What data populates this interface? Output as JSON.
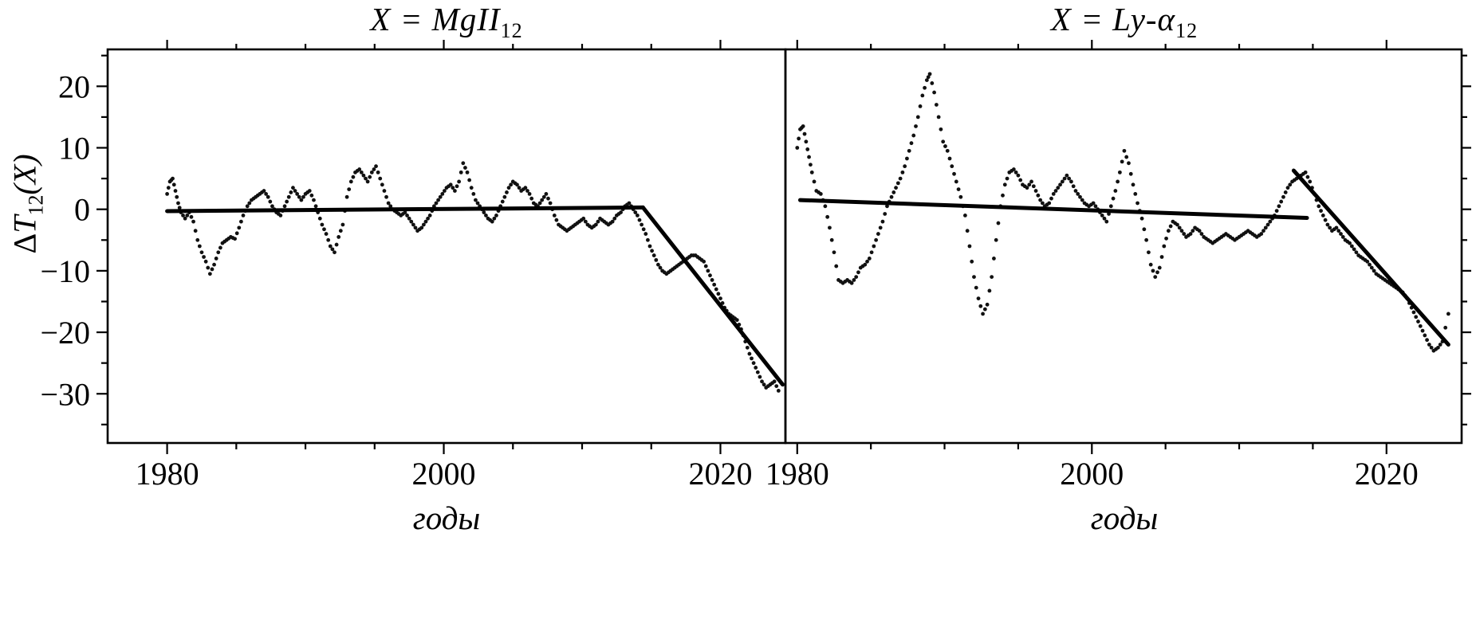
{
  "figure": {
    "background": "#ffffff",
    "axis_color": "#000000",
    "dot_color": "#111111",
    "trend_color": "#000000"
  },
  "axes": {
    "ylabel": {
      "delta": "Δ",
      "main": "T",
      "sub": "12",
      "suffix": "(X)"
    },
    "xlabel": "годы"
  },
  "chart_data": [
    {
      "type": "scatter",
      "title_main": "X = MgII",
      "title_sub": "12",
      "xlabel": "годы",
      "ylabel": "ΔT12(X)",
      "xlim": [
        1975.7,
        2024.7
      ],
      "ylim": [
        -38,
        26
      ],
      "x_major_ticks": [
        1980,
        2000,
        2020
      ],
      "x_minor_ticks": [
        1985,
        1990,
        1995,
        2005,
        2010,
        2015
      ],
      "y_major_ticks": [
        20,
        10,
        0,
        -10,
        -20,
        -30
      ],
      "y_minor_ticks": [
        25,
        15,
        5,
        -5,
        -15,
        -25,
        -35
      ],
      "grid": false,
      "legend": "none",
      "points": [
        [
          1980.0,
          2.5
        ],
        [
          1980.2,
          4.5
        ],
        [
          1980.4,
          5.0
        ],
        [
          1980.6,
          3.0
        ],
        [
          1980.8,
          1.0
        ],
        [
          1981.0,
          -0.5
        ],
        [
          1981.3,
          -1.5
        ],
        [
          1981.6,
          -0.5
        ],
        [
          1981.9,
          -2.0
        ],
        [
          1982.2,
          -5.0
        ],
        [
          1982.5,
          -7.0
        ],
        [
          1982.8,
          -8.5
        ],
        [
          1983.1,
          -10.5
        ],
        [
          1983.4,
          -9.0
        ],
        [
          1983.7,
          -7.0
        ],
        [
          1984.0,
          -5.5
        ],
        [
          1984.3,
          -5.0
        ],
        [
          1984.6,
          -4.5
        ],
        [
          1984.9,
          -4.8
        ],
        [
          1985.2,
          -3.0
        ],
        [
          1985.5,
          -1.0
        ],
        [
          1985.8,
          0.5
        ],
        [
          1986.1,
          1.5
        ],
        [
          1986.4,
          2.0
        ],
        [
          1986.7,
          2.5
        ],
        [
          1987.0,
          3.0
        ],
        [
          1987.3,
          2.0
        ],
        [
          1987.6,
          0.5
        ],
        [
          1987.9,
          -0.5
        ],
        [
          1988.2,
          -1.0
        ],
        [
          1988.5,
          0.5
        ],
        [
          1988.8,
          2.0
        ],
        [
          1989.1,
          3.5
        ],
        [
          1989.4,
          2.5
        ],
        [
          1989.7,
          1.5
        ],
        [
          1990.0,
          2.5
        ],
        [
          1990.3,
          3.0
        ],
        [
          1990.6,
          1.5
        ],
        [
          1990.9,
          -0.5
        ],
        [
          1991.2,
          -2.5
        ],
        [
          1991.5,
          -4.0
        ],
        [
          1991.8,
          -6.0
        ],
        [
          1992.1,
          -7.0
        ],
        [
          1992.4,
          -4.5
        ],
        [
          1992.7,
          -2.5
        ],
        [
          1993.0,
          2.0
        ],
        [
          1993.3,
          4.5
        ],
        [
          1993.6,
          6.0
        ],
        [
          1993.9,
          6.5
        ],
        [
          1994.2,
          5.5
        ],
        [
          1994.5,
          4.5
        ],
        [
          1994.8,
          6.0
        ],
        [
          1995.1,
          7.0
        ],
        [
          1995.4,
          5.0
        ],
        [
          1995.7,
          3.0
        ],
        [
          1996.0,
          1.0
        ],
        [
          1996.3,
          0.0
        ],
        [
          1996.6,
          -0.5
        ],
        [
          1996.9,
          -1.0
        ],
        [
          1997.2,
          -0.5
        ],
        [
          1997.5,
          -1.5
        ],
        [
          1997.8,
          -2.5
        ],
        [
          1998.1,
          -3.5
        ],
        [
          1998.4,
          -3.0
        ],
        [
          1998.7,
          -2.0
        ],
        [
          1999.0,
          -1.0
        ],
        [
          1999.3,
          0.5
        ],
        [
          1999.6,
          1.5
        ],
        [
          1999.9,
          2.5
        ],
        [
          2000.2,
          3.5
        ],
        [
          2000.5,
          4.0
        ],
        [
          2000.8,
          3.0
        ],
        [
          2001.1,
          4.5
        ],
        [
          2001.4,
          7.5
        ],
        [
          2001.7,
          6.0
        ],
        [
          2002.0,
          3.5
        ],
        [
          2002.3,
          1.5
        ],
        [
          2002.6,
          0.5
        ],
        [
          2002.9,
          -0.5
        ],
        [
          2003.2,
          -1.5
        ],
        [
          2003.5,
          -2.0
        ],
        [
          2003.8,
          -1.0
        ],
        [
          2004.1,
          0.5
        ],
        [
          2004.4,
          2.0
        ],
        [
          2004.7,
          3.5
        ],
        [
          2005.0,
          4.5
        ],
        [
          2005.3,
          4.0
        ],
        [
          2005.6,
          3.0
        ],
        [
          2005.9,
          3.5
        ],
        [
          2006.2,
          2.5
        ],
        [
          2006.5,
          1.0
        ],
        [
          2006.8,
          0.5
        ],
        [
          2007.1,
          1.5
        ],
        [
          2007.4,
          2.5
        ],
        [
          2007.7,
          1.0
        ],
        [
          2008.0,
          -1.0
        ],
        [
          2008.3,
          -2.5
        ],
        [
          2008.6,
          -3.0
        ],
        [
          2008.9,
          -3.5
        ],
        [
          2009.2,
          -3.0
        ],
        [
          2009.5,
          -2.5
        ],
        [
          2009.8,
          -2.0
        ],
        [
          2010.1,
          -1.5
        ],
        [
          2010.4,
          -2.5
        ],
        [
          2010.7,
          -3.0
        ],
        [
          2011.0,
          -2.5
        ],
        [
          2011.3,
          -1.5
        ],
        [
          2011.6,
          -2.0
        ],
        [
          2011.9,
          -2.5
        ],
        [
          2012.2,
          -2.0
        ],
        [
          2012.5,
          -1.0
        ],
        [
          2012.8,
          -0.5
        ],
        [
          2013.1,
          0.5
        ],
        [
          2013.4,
          1.0
        ],
        [
          2013.7,
          0.0
        ],
        [
          2014.0,
          -1.0
        ],
        [
          2014.3,
          -2.5
        ],
        [
          2014.6,
          -4.0
        ],
        [
          2014.9,
          -6.0
        ],
        [
          2015.2,
          -7.5
        ],
        [
          2015.5,
          -9.0
        ],
        [
          2015.8,
          -10.0
        ],
        [
          2016.1,
          -10.5
        ],
        [
          2016.4,
          -10.0
        ],
        [
          2016.7,
          -9.5
        ],
        [
          2017.0,
          -9.0
        ],
        [
          2017.3,
          -8.5
        ],
        [
          2017.6,
          -8.0
        ],
        [
          2017.9,
          -7.5
        ],
        [
          2018.2,
          -7.5
        ],
        [
          2018.5,
          -8.0
        ],
        [
          2018.8,
          -8.5
        ],
        [
          2019.1,
          -10.0
        ],
        [
          2019.4,
          -11.5
        ],
        [
          2019.7,
          -13.0
        ],
        [
          2020.0,
          -14.5
        ],
        [
          2020.3,
          -16.0
        ],
        [
          2020.6,
          -17.0
        ],
        [
          2020.9,
          -17.5
        ],
        [
          2021.2,
          -18.0
        ],
        [
          2021.5,
          -19.5
        ],
        [
          2021.8,
          -21.5
        ],
        [
          2022.1,
          -23.5
        ],
        [
          2022.4,
          -25.0
        ],
        [
          2022.7,
          -26.5
        ],
        [
          2023.0,
          -28.0
        ],
        [
          2023.3,
          -29.0
        ],
        [
          2023.6,
          -28.5
        ],
        [
          2023.9,
          -28.0
        ],
        [
          2024.2,
          -29.5
        ]
      ],
      "trend_segments": [
        {
          "x1": 1980.0,
          "y1": -0.3,
          "x2": 2014.4,
          "y2": 0.3
        },
        {
          "x1": 2014.4,
          "y1": 0.3,
          "x2": 2024.5,
          "y2": -28.5
        }
      ]
    },
    {
      "type": "scatter",
      "title_main": "X = Ly-α",
      "title_sub": "12",
      "xlabel": "годы",
      "ylabel": "ΔT12(X)",
      "xlim": [
        1979.2,
        2025.1
      ],
      "ylim": [
        -38,
        26
      ],
      "x_major_ticks": [
        1980,
        2000,
        2020
      ],
      "x_minor_ticks": [
        1985,
        1990,
        1995,
        2005,
        2010,
        2015
      ],
      "y_major_ticks": [
        20,
        10,
        0,
        -10,
        -20,
        -30
      ],
      "y_minor_ticks": [
        25,
        15,
        5,
        -5,
        -15,
        -25,
        -35
      ],
      "grid": false,
      "legend": "none",
      "points": [
        [
          1980.0,
          10.0
        ],
        [
          1980.2,
          13.0
        ],
        [
          1980.4,
          13.5
        ],
        [
          1980.6,
          11.0
        ],
        [
          1980.8,
          8.5
        ],
        [
          1981.0,
          6.0
        ],
        [
          1981.3,
          3.0
        ],
        [
          1981.6,
          2.5
        ],
        [
          1981.9,
          0.5
        ],
        [
          1982.2,
          -3.0
        ],
        [
          1982.5,
          -7.0
        ],
        [
          1982.8,
          -11.5
        ],
        [
          1983.1,
          -12.0
        ],
        [
          1983.4,
          -11.5
        ],
        [
          1983.7,
          -12.0
        ],
        [
          1984.0,
          -11.0
        ],
        [
          1984.3,
          -9.5
        ],
        [
          1984.6,
          -9.0
        ],
        [
          1984.9,
          -8.0
        ],
        [
          1985.2,
          -6.0
        ],
        [
          1985.5,
          -4.0
        ],
        [
          1985.8,
          -2.0
        ],
        [
          1986.1,
          0.5
        ],
        [
          1986.4,
          2.0
        ],
        [
          1986.7,
          3.5
        ],
        [
          1987.0,
          5.0
        ],
        [
          1987.3,
          7.0
        ],
        [
          1987.6,
          9.5
        ],
        [
          1987.9,
          12.0
        ],
        [
          1988.2,
          15.0
        ],
        [
          1988.5,
          18.5
        ],
        [
          1988.8,
          21.0
        ],
        [
          1989.0,
          22.0
        ],
        [
          1989.3,
          19.0
        ],
        [
          1989.6,
          15.0
        ],
        [
          1989.9,
          11.0
        ],
        [
          1990.2,
          9.5
        ],
        [
          1990.5,
          7.0
        ],
        [
          1990.8,
          4.5
        ],
        [
          1991.1,
          2.0
        ],
        [
          1991.4,
          -1.0
        ],
        [
          1991.7,
          -6.0
        ],
        [
          1992.0,
          -11.0
        ],
        [
          1992.3,
          -14.5
        ],
        [
          1992.6,
          -17.0
        ],
        [
          1992.9,
          -15.5
        ],
        [
          1993.2,
          -11.0
        ],
        [
          1993.5,
          -5.0
        ],
        [
          1993.8,
          0.5
        ],
        [
          1994.1,
          4.0
        ],
        [
          1994.4,
          6.0
        ],
        [
          1994.7,
          6.5
        ],
        [
          1995.0,
          5.5
        ],
        [
          1995.3,
          4.0
        ],
        [
          1995.6,
          3.5
        ],
        [
          1995.9,
          4.5
        ],
        [
          1996.2,
          3.0
        ],
        [
          1996.5,
          1.5
        ],
        [
          1996.8,
          0.5
        ],
        [
          1997.1,
          1.0
        ],
        [
          1997.4,
          2.5
        ],
        [
          1997.7,
          3.5
        ],
        [
          1998.0,
          4.5
        ],
        [
          1998.3,
          5.5
        ],
        [
          1998.6,
          4.5
        ],
        [
          1998.9,
          3.0
        ],
        [
          1999.2,
          2.0
        ],
        [
          1999.5,
          1.0
        ],
        [
          1999.8,
          0.5
        ],
        [
          2000.1,
          1.0
        ],
        [
          2000.4,
          0.0
        ],
        [
          2000.7,
          -1.0
        ],
        [
          2001.0,
          -2.0
        ],
        [
          2001.3,
          0.5
        ],
        [
          2001.6,
          3.0
        ],
        [
          2001.9,
          6.0
        ],
        [
          2002.2,
          9.5
        ],
        [
          2002.5,
          7.5
        ],
        [
          2002.8,
          4.0
        ],
        [
          2003.1,
          1.0
        ],
        [
          2003.4,
          -1.5
        ],
        [
          2003.7,
          -5.0
        ],
        [
          2004.0,
          -9.0
        ],
        [
          2004.3,
          -11.0
        ],
        [
          2004.6,
          -9.5
        ],
        [
          2004.9,
          -6.0
        ],
        [
          2005.2,
          -3.5
        ],
        [
          2005.5,
          -2.0
        ],
        [
          2005.8,
          -2.5
        ],
        [
          2006.1,
          -3.5
        ],
        [
          2006.4,
          -4.5
        ],
        [
          2006.7,
          -4.0
        ],
        [
          2007.0,
          -3.0
        ],
        [
          2007.3,
          -3.5
        ],
        [
          2007.6,
          -4.5
        ],
        [
          2007.9,
          -5.0
        ],
        [
          2008.2,
          -5.5
        ],
        [
          2008.5,
          -5.0
        ],
        [
          2008.8,
          -4.5
        ],
        [
          2009.1,
          -4.0
        ],
        [
          2009.4,
          -4.5
        ],
        [
          2009.7,
          -5.0
        ],
        [
          2010.0,
          -4.5
        ],
        [
          2010.3,
          -4.0
        ],
        [
          2010.6,
          -3.5
        ],
        [
          2010.9,
          -4.0
        ],
        [
          2011.2,
          -4.5
        ],
        [
          2011.5,
          -4.0
        ],
        [
          2011.8,
          -3.0
        ],
        [
          2012.1,
          -2.0
        ],
        [
          2012.4,
          -1.0
        ],
        [
          2012.7,
          0.5
        ],
        [
          2013.0,
          2.0
        ],
        [
          2013.3,
          3.5
        ],
        [
          2013.6,
          4.5
        ],
        [
          2013.9,
          5.0
        ],
        [
          2014.2,
          5.5
        ],
        [
          2014.5,
          6.0
        ],
        [
          2014.8,
          4.5
        ],
        [
          2015.1,
          2.5
        ],
        [
          2015.4,
          0.5
        ],
        [
          2015.7,
          -1.0
        ],
        [
          2016.0,
          -2.5
        ],
        [
          2016.3,
          -3.5
        ],
        [
          2016.6,
          -3.0
        ],
        [
          2016.9,
          -4.0
        ],
        [
          2017.2,
          -5.0
        ],
        [
          2017.5,
          -5.5
        ],
        [
          2017.8,
          -6.5
        ],
        [
          2018.1,
          -7.5
        ],
        [
          2018.4,
          -8.0
        ],
        [
          2018.7,
          -8.5
        ],
        [
          2019.0,
          -9.5
        ],
        [
          2019.3,
          -10.5
        ],
        [
          2019.6,
          -11.0
        ],
        [
          2019.9,
          -11.5
        ],
        [
          2020.2,
          -12.0
        ],
        [
          2020.5,
          -12.5
        ],
        [
          2020.8,
          -13.0
        ],
        [
          2021.1,
          -13.5
        ],
        [
          2021.4,
          -14.5
        ],
        [
          2021.7,
          -16.0
        ],
        [
          2022.0,
          -17.5
        ],
        [
          2022.3,
          -19.0
        ],
        [
          2022.6,
          -20.5
        ],
        [
          2022.9,
          -22.0
        ],
        [
          2023.2,
          -23.0
        ],
        [
          2023.5,
          -22.5
        ],
        [
          2023.8,
          -21.5
        ],
        [
          2024.2,
          -17.0
        ]
      ],
      "trend_segments": [
        {
          "x1": 1980.2,
          "y1": 1.5,
          "x2": 2014.6,
          "y2": -1.4
        },
        {
          "x1": 2013.7,
          "y1": 6.3,
          "x2": 2024.2,
          "y2": -22.0
        }
      ]
    }
  ]
}
